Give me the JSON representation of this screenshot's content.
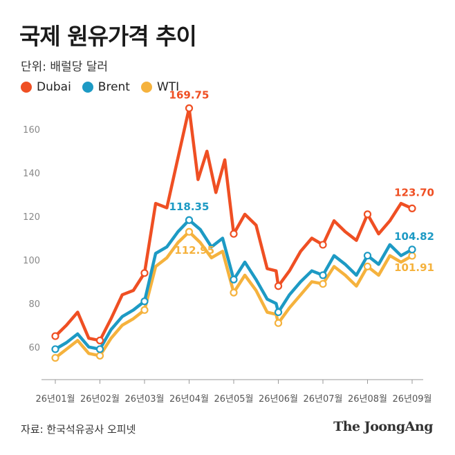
{
  "header": {
    "title": "국제 원유가격 추이",
    "unit_label": "단위: 배럴당 달러"
  },
  "legend": [
    {
      "label": "Dubai",
      "color": "#ef4f23"
    },
    {
      "label": "Brent",
      "color": "#1d9ac4"
    },
    {
      "label": "WTI",
      "color": "#f5b23d"
    }
  ],
  "footer": {
    "source": "자료: 한국석유공사 오피넷",
    "brand": "The JoongAng"
  },
  "chart_data": {
    "type": "line",
    "title": "국제 원유가격 추이",
    "ylabel": "",
    "xlabel": "",
    "ylim": [
      45,
      175
    ],
    "yticks": [
      60,
      80,
      100,
      120,
      140,
      160
    ],
    "x_ticks": [
      "26년01월",
      "26년02월",
      "26년03월",
      "26년04월",
      "26년05월",
      "26년06월",
      "26년07월",
      "26년08월",
      "26년09월"
    ],
    "xlim": [
      0,
      8
    ],
    "grid": false,
    "legend_position": "top-left",
    "series": [
      {
        "name": "Dubai",
        "color": "#ef4f23",
        "x": [
          0,
          0.25,
          0.5,
          0.75,
          1,
          1.25,
          1.5,
          1.75,
          2,
          2.25,
          2.5,
          2.75,
          3,
          3.2,
          3.4,
          3.6,
          3.8,
          4,
          4.25,
          4.5,
          4.75,
          4.95,
          5,
          5.25,
          5.5,
          5.75,
          6,
          6.25,
          6.5,
          6.75,
          7,
          7.25,
          7.5,
          7.75,
          8
        ],
        "values": [
          65,
          70,
          76,
          64,
          63,
          73,
          84,
          86,
          94,
          126,
          124,
          147,
          169.75,
          137,
          150,
          131,
          146,
          112,
          121,
          116,
          96,
          95,
          88,
          95,
          104,
          110,
          107,
          118,
          113,
          109,
          121,
          112,
          118,
          126,
          123.7
        ],
        "markers": [
          0,
          4,
          8,
          12,
          17,
          22,
          26,
          30,
          34
        ],
        "end_label": "123.70",
        "peak_label": "169.75"
      },
      {
        "name": "Brent",
        "color": "#1d9ac4",
        "x": [
          0,
          0.25,
          0.5,
          0.75,
          1,
          1.25,
          1.5,
          1.75,
          2,
          2.25,
          2.5,
          2.75,
          3,
          3.25,
          3.5,
          3.75,
          4,
          4.25,
          4.5,
          4.75,
          4.95,
          5,
          5.25,
          5.5,
          5.75,
          6,
          6.25,
          6.5,
          6.75,
          7,
          7.25,
          7.5,
          7.75,
          8
        ],
        "values": [
          59,
          62,
          66,
          60,
          59,
          68,
          74,
          77,
          81,
          103,
          106,
          113,
          118.35,
          114,
          106,
          110,
          91,
          99,
          91,
          82,
          80,
          76,
          84,
          90,
          95,
          93,
          102,
          98,
          93,
          102,
          98,
          107,
          102,
          104.82
        ],
        "markers": [
          0,
          4,
          8,
          12,
          16,
          21,
          25,
          29,
          33
        ],
        "end_label": "104.82",
        "peak_label": "118.35"
      },
      {
        "name": "WTI",
        "color": "#f5b23d",
        "x": [
          0,
          0.25,
          0.5,
          0.75,
          1,
          1.25,
          1.5,
          1.75,
          2,
          2.25,
          2.5,
          2.75,
          3,
          3.25,
          3.5,
          3.75,
          4,
          4.25,
          4.5,
          4.75,
          4.95,
          5,
          5.25,
          5.5,
          5.75,
          6,
          6.25,
          6.5,
          6.75,
          7,
          7.25,
          7.5,
          7.75,
          8
        ],
        "values": [
          55,
          59,
          63,
          57,
          56,
          64,
          70,
          73,
          77,
          97,
          101,
          108,
          112.95,
          108,
          101,
          104,
          85,
          93,
          86,
          76,
          75,
          71,
          78,
          84,
          90,
          89,
          97,
          93,
          88,
          97,
          93,
          102,
          99,
          101.91
        ],
        "markers": [
          0,
          4,
          8,
          12,
          16,
          21,
          25,
          29,
          33
        ],
        "end_label": "101.91",
        "peak_label": "112.95"
      }
    ]
  }
}
